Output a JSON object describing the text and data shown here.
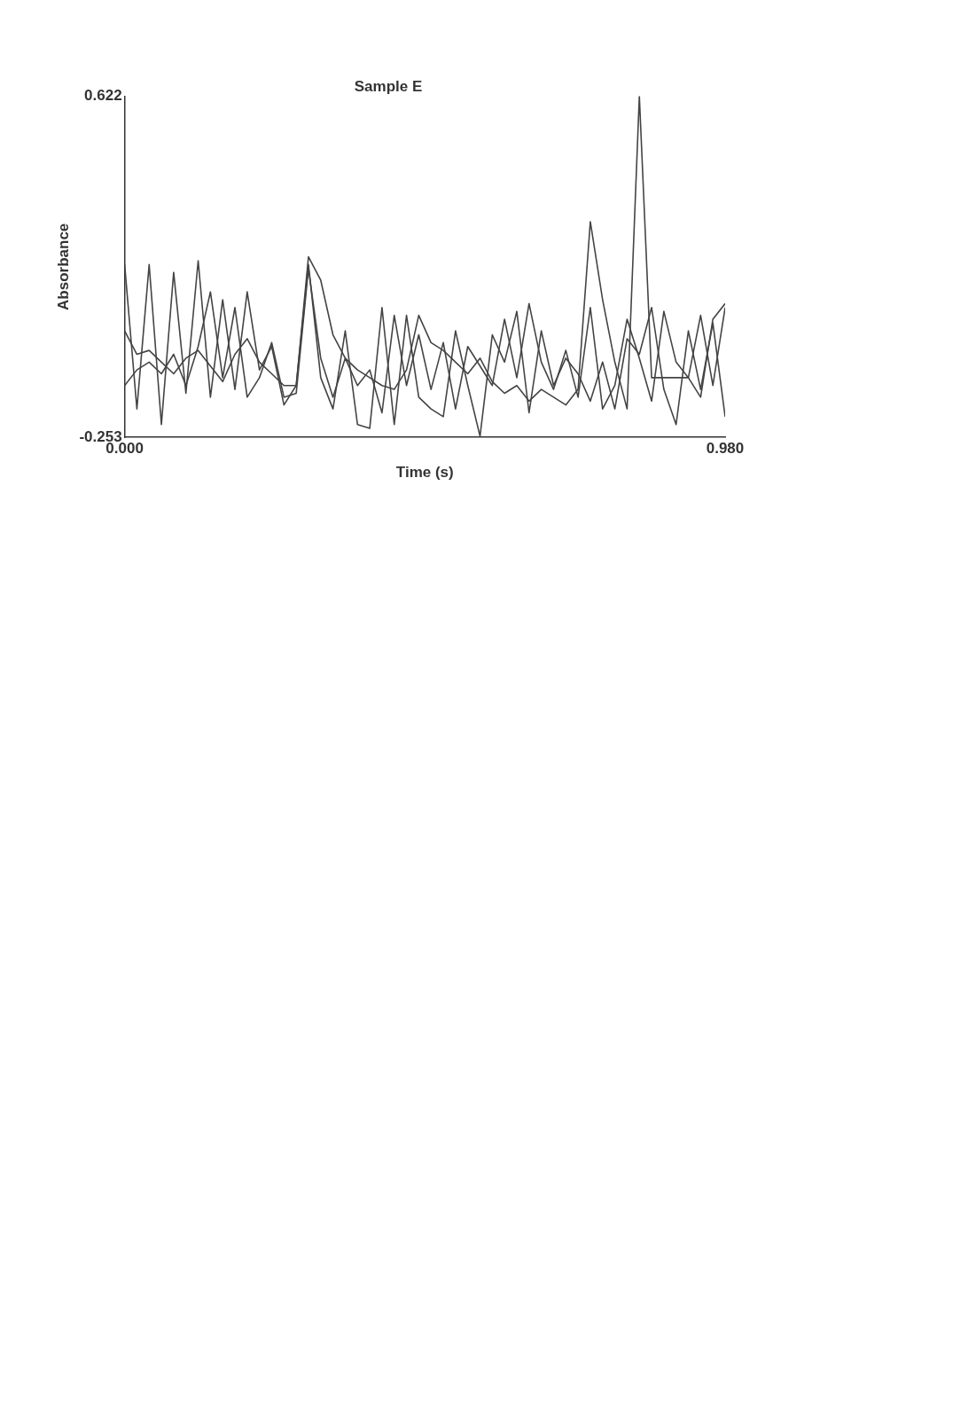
{
  "chart_data": {
    "type": "line",
    "title": "Sample E",
    "xlabel": "Time (s)",
    "ylabel": "Absorbance",
    "x": [
      0,
      0.02,
      0.04,
      0.06,
      0.08,
      0.1,
      0.12,
      0.14,
      0.16,
      0.18,
      0.2,
      0.22,
      0.24,
      0.26,
      0.28,
      0.3,
      0.32,
      0.34,
      0.36,
      0.38,
      0.4,
      0.42,
      0.44,
      0.46,
      0.48,
      0.5,
      0.52,
      0.54,
      0.56,
      0.58,
      0.6,
      0.62,
      0.64,
      0.66,
      0.68,
      0.7,
      0.72,
      0.74,
      0.76,
      0.78,
      0.8,
      0.82,
      0.84,
      0.86,
      0.88,
      0.9,
      0.92,
      0.94,
      0.96,
      0.98
    ],
    "series": [
      {
        "color": "#444444",
        "values": [
          0.02,
          -0.04,
          -0.03,
          -0.06,
          -0.09,
          -0.05,
          -0.03,
          -0.07,
          -0.11,
          -0.04,
          0.0,
          -0.06,
          -0.09,
          -0.12,
          -0.12,
          0.21,
          0.15,
          0.01,
          -0.05,
          -0.08,
          -0.1,
          -0.12,
          -0.13,
          -0.08,
          0.06,
          -0.01,
          -0.03,
          -0.06,
          -0.09,
          -0.05,
          -0.11,
          -0.14,
          -0.12,
          -0.16,
          -0.13,
          -0.15,
          -0.17,
          -0.13,
          0.3,
          0.1,
          -0.06,
          -0.18,
          0.622,
          -0.1,
          -0.1,
          -0.1,
          -0.1,
          -0.15,
          0.05,
          0.09
        ]
      },
      {
        "color": "#444444",
        "values": [
          0.19,
          -0.18,
          0.19,
          -0.22,
          0.17,
          -0.14,
          0.2,
          -0.15,
          0.1,
          -0.13,
          0.12,
          -0.08,
          -0.02,
          -0.17,
          -0.12,
          0.19,
          -0.1,
          -0.18,
          0.02,
          -0.22,
          -0.23,
          0.08,
          -0.22,
          0.06,
          -0.15,
          -0.18,
          -0.2,
          0.02,
          -0.12,
          -0.25,
          0.01,
          -0.06,
          0.07,
          -0.19,
          0.02,
          -0.12,
          -0.05,
          -0.09,
          -0.16,
          -0.06,
          -0.18,
          0.0,
          -0.04,
          0.08,
          -0.13,
          -0.22,
          0.02,
          -0.13,
          0.04,
          -0.2
        ]
      },
      {
        "color": "#444444",
        "values": [
          -0.12,
          -0.08,
          -0.06,
          -0.09,
          -0.04,
          -0.12,
          -0.02,
          0.12,
          -0.1,
          0.08,
          -0.15,
          -0.1,
          -0.01,
          -0.15,
          -0.14,
          0.18,
          -0.05,
          -0.15,
          -0.05,
          -0.12,
          -0.08,
          -0.19,
          0.06,
          -0.12,
          0.01,
          -0.13,
          -0.01,
          -0.18,
          -0.02,
          -0.07,
          -0.12,
          0.05,
          -0.1,
          0.09,
          -0.06,
          -0.13,
          -0.03,
          -0.15,
          0.08,
          -0.18,
          -0.12,
          0.05,
          -0.05,
          -0.16,
          0.07,
          -0.06,
          -0.1,
          0.06,
          -0.12,
          0.08
        ]
      }
    ],
    "xlim": [
      0,
      0.98
    ],
    "xticks": [
      {
        "value": 0,
        "label": "0.000"
      },
      {
        "value": 0.98,
        "label": "0.980"
      }
    ],
    "ylim": [
      -0.253,
      0.622
    ],
    "yticks": [
      -0.253,
      0.622
    ],
    "grid": false,
    "legend": false,
    "marker": "none",
    "line_style": "solid"
  }
}
